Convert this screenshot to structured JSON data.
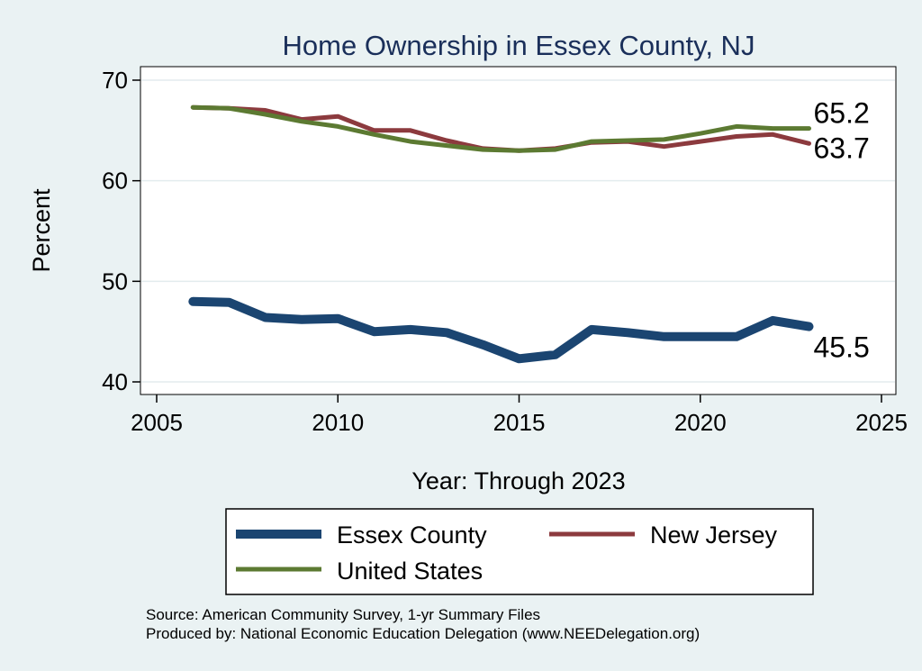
{
  "chart_data": {
    "type": "line",
    "title": "Home Ownership in Essex County, NJ",
    "xlabel": "Year: Through 2023",
    "ylabel": "Percent",
    "xlim": [
      2005,
      2025
    ],
    "ylim": [
      40,
      70
    ],
    "xticks": [
      2005,
      2010,
      2015,
      2020,
      2025
    ],
    "yticks": [
      40,
      50,
      60,
      70
    ],
    "grid": "horizontal",
    "x": [
      2006,
      2007,
      2008,
      2009,
      2010,
      2011,
      2012,
      2013,
      2014,
      2015,
      2016,
      2017,
      2018,
      2019,
      2020,
      2021,
      2022,
      2023
    ],
    "series": [
      {
        "name": "New Jersey",
        "color": "#8c3a3e",
        "end_label": "63.7",
        "values": [
          67.3,
          67.2,
          67.0,
          66.1,
          66.4,
          65.0,
          65.0,
          64.0,
          63.2,
          63.0,
          63.2,
          63.8,
          63.9,
          63.4,
          63.9,
          64.4,
          64.6,
          63.7
        ]
      },
      {
        "name": "United States",
        "color": "#5c7a32",
        "end_label": "65.2",
        "values": [
          67.3,
          67.2,
          66.6,
          65.9,
          65.4,
          64.6,
          63.9,
          63.5,
          63.1,
          63.0,
          63.1,
          63.9,
          64.0,
          64.1,
          64.7,
          65.4,
          65.2,
          65.2
        ]
      },
      {
        "name": "Essex County",
        "color": "#1b4571",
        "end_label": "45.5",
        "values": [
          48.0,
          47.9,
          46.4,
          46.2,
          46.3,
          45.0,
          45.2,
          44.9,
          43.7,
          42.3,
          42.7,
          45.2,
          44.9,
          44.5,
          44.5,
          44.5,
          46.1,
          45.5
        ]
      }
    ],
    "legend": {
      "placement": "bottom",
      "items": [
        {
          "label": "Essex County",
          "color": "#1b4571"
        },
        {
          "label": "New Jersey",
          "color": "#8c3a3e"
        },
        {
          "label": "United States",
          "color": "#5c7a32"
        }
      ]
    },
    "notes": [
      "Source: American Community Survey, 1-yr Summary Files",
      "Produced by: National Economic Education Delegation (www.NEEDelegation.org)"
    ]
  }
}
